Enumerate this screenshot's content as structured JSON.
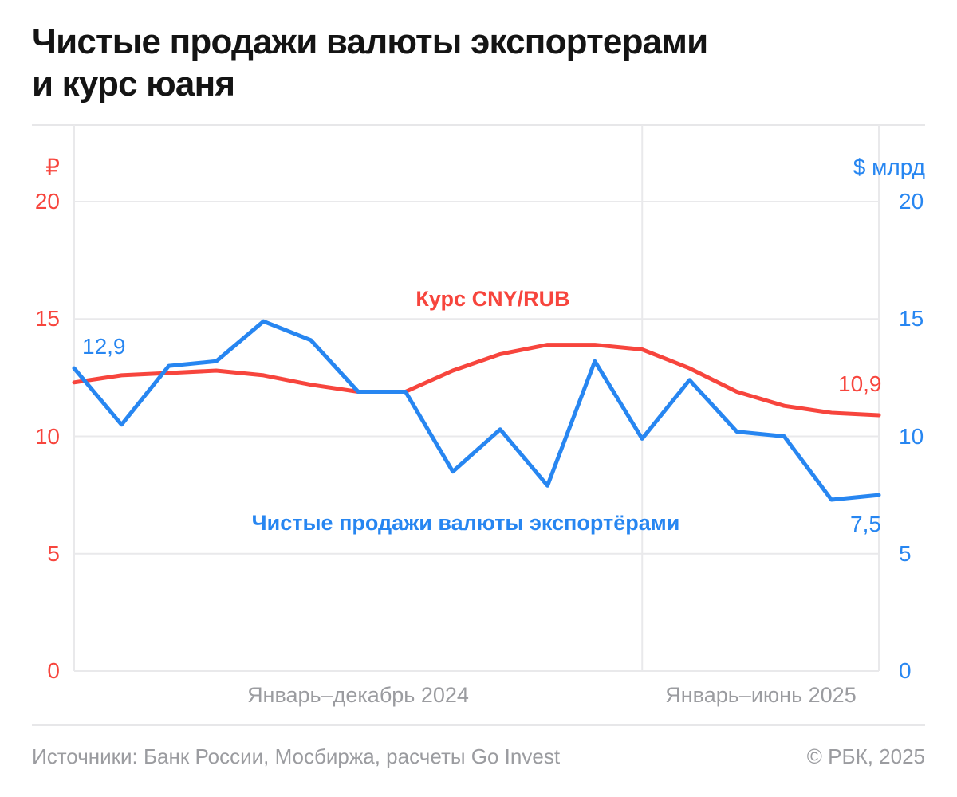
{
  "title": {
    "line1": "Чистые продажи валюты экспортерами",
    "line2": "и курс юаня"
  },
  "chart_data": {
    "type": "line",
    "x_axis": {
      "groups": [
        {
          "label": "Январь–декабрь 2024",
          "points": 12
        },
        {
          "label": "Январь–июнь 2025",
          "points": 6
        }
      ]
    },
    "divider_index": 12,
    "axes": {
      "range": [
        0,
        20
      ],
      "left": {
        "unit": "₽",
        "ticks": [
          20,
          15,
          10,
          5,
          0
        ],
        "color": "#F7453D"
      },
      "right": {
        "unit": "$ млрд",
        "ticks": [
          20,
          15,
          10,
          5,
          0
        ],
        "color": "#2786F1"
      }
    },
    "grid": "horizontal",
    "legend": "inline-labels",
    "series": [
      {
        "name": "Курс CNY/RUB",
        "axis": "left",
        "color": "#F7453D",
        "values": [
          12.3,
          12.6,
          12.7,
          12.8,
          12.6,
          12.2,
          11.9,
          11.9,
          12.8,
          13.5,
          13.9,
          13.9,
          13.7,
          12.9,
          11.9,
          11.3,
          11.0,
          10.9
        ]
      },
      {
        "name": "Чистые продажи валюты экспортёрами",
        "axis": "right",
        "color": "#2786F1",
        "values": [
          12.9,
          10.5,
          13.0,
          13.2,
          14.9,
          14.1,
          11.9,
          11.9,
          8.5,
          10.3,
          7.9,
          13.2,
          9.9,
          12.4,
          10.2,
          10.0,
          7.3,
          7.5
        ]
      }
    ],
    "annotations": [
      {
        "text": "12,9",
        "series": "Чистые продажи валюты экспортёрами",
        "position": "first-point"
      },
      {
        "text": "10,9",
        "series": "Курс CNY/RUB",
        "position": "last-point"
      },
      {
        "text": "7,5",
        "series": "Чистые продажи валюты экспортёрами",
        "position": "last-point"
      }
    ]
  },
  "footer": {
    "sources": "Источники: Банк России, Мосбиржа, расчеты Go Invest",
    "copyright": "© РБК, 2025"
  },
  "colors": {
    "red": "#F7453D",
    "blue": "#2786F1",
    "grid": "#E9E9EB",
    "text_gray": "#9B9CA0",
    "title": "#141414"
  }
}
